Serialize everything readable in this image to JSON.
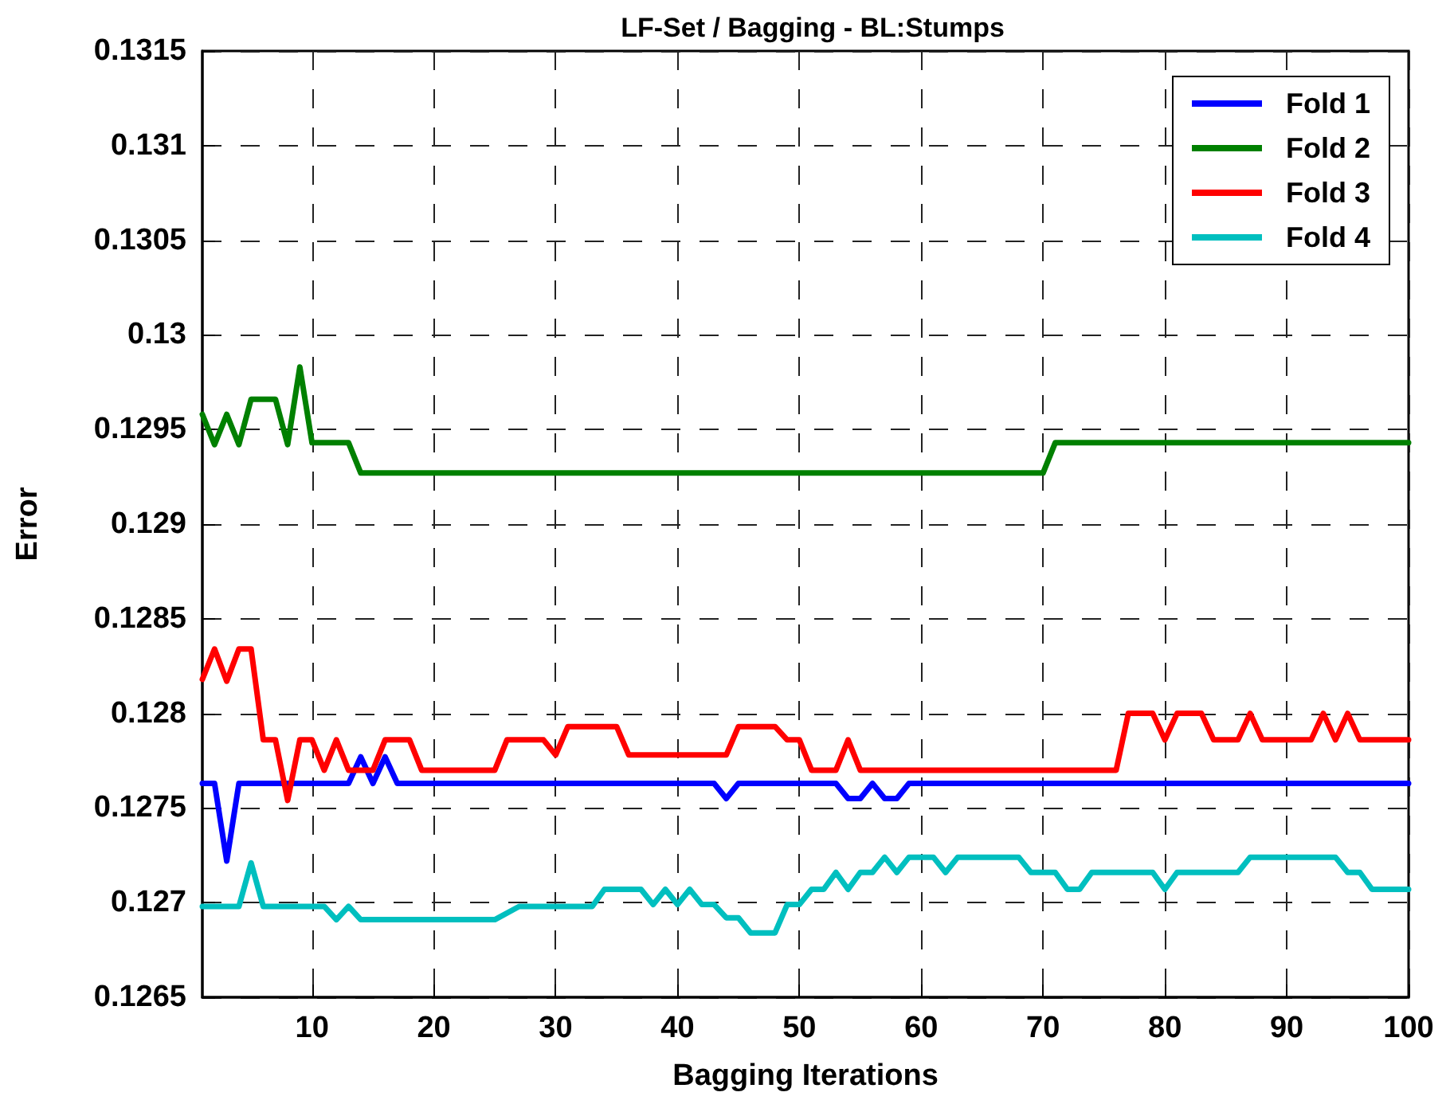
{
  "chart_data": {
    "type": "line",
    "title": "LF-Set / Bagging - BL:Stumps",
    "xlabel": "Bagging Iterations",
    "ylabel": "Error",
    "xlim": [
      1,
      100
    ],
    "xticks": [
      10,
      20,
      30,
      40,
      50,
      60,
      70,
      80,
      90,
      100
    ],
    "ylim": [
      0.1265,
      0.1315
    ],
    "yticks": [
      0.1265,
      0.127,
      0.1275,
      0.128,
      0.1285,
      0.129,
      0.1295,
      0.13,
      0.1305,
      0.131,
      0.1315
    ],
    "grid": true,
    "legend": "top right",
    "marker": "none",
    "line_style": "solid",
    "series": [
      {
        "name": "Fold 1",
        "color": "#0000ff",
        "x": [
          1,
          2,
          3,
          4,
          13,
          14,
          15,
          16,
          17,
          43,
          44,
          45,
          53,
          54,
          55,
          56,
          57,
          58,
          59,
          100
        ],
        "values": [
          0.12763,
          0.12763,
          0.12722,
          0.12763,
          0.12763,
          0.12777,
          0.12763,
          0.12777,
          0.12763,
          0.12763,
          0.12755,
          0.12763,
          0.12763,
          0.12755,
          0.12755,
          0.12763,
          0.12755,
          0.12755,
          0.12763,
          0.12763
        ]
      },
      {
        "name": "Fold 2",
        "color": "#008000",
        "x": [
          1,
          2,
          3,
          4,
          5,
          7,
          8,
          9,
          10,
          13,
          14,
          70,
          71,
          100
        ],
        "values": [
          0.12958,
          0.12942,
          0.12958,
          0.12942,
          0.12966,
          0.12966,
          0.12942,
          0.12983,
          0.12943,
          0.12943,
          0.12927,
          0.12927,
          0.12943,
          0.12943
        ]
      },
      {
        "name": "Fold 3",
        "color": "#ff0000",
        "x": [
          1,
          2,
          3,
          4,
          5,
          6,
          7,
          8,
          9,
          10,
          11,
          12,
          13,
          15,
          16,
          18,
          19,
          25,
          26,
          29,
          30,
          31,
          35,
          36,
          44,
          45,
          48,
          49,
          50,
          51,
          53,
          54,
          55,
          76,
          77,
          79,
          80,
          81,
          83,
          84,
          86,
          87,
          88,
          92,
          93,
          94,
          95,
          96,
          100
        ],
        "values": [
          0.12818,
          0.12834,
          0.12817,
          0.12834,
          0.12834,
          0.12786,
          0.12786,
          0.12754,
          0.12786,
          0.12786,
          0.1277,
          0.12786,
          0.1277,
          0.1277,
          0.12786,
          0.12786,
          0.1277,
          0.1277,
          0.12786,
          0.12786,
          0.12778,
          0.12793,
          0.12793,
          0.12778,
          0.12778,
          0.12793,
          0.12793,
          0.12786,
          0.12786,
          0.1277,
          0.1277,
          0.12786,
          0.1277,
          0.1277,
          0.128,
          0.128,
          0.12786,
          0.128,
          0.128,
          0.12786,
          0.12786,
          0.128,
          0.12786,
          0.12786,
          0.128,
          0.12786,
          0.128,
          0.12786,
          0.12786
        ]
      },
      {
        "name": "Fold 4",
        "color": "#00bfbf",
        "x": [
          1,
          4,
          5,
          6,
          10,
          11,
          12,
          13,
          14,
          25,
          27,
          33,
          34,
          37,
          38,
          39,
          40,
          41,
          42,
          43,
          44,
          45,
          46,
          47,
          48,
          49,
          50,
          51,
          52,
          53,
          54,
          55,
          56,
          57,
          58,
          59,
          61,
          62,
          63,
          68,
          69,
          71,
          72,
          73,
          74,
          79,
          80,
          81,
          86,
          87,
          94,
          95,
          96,
          97,
          100
        ],
        "values": [
          0.12698,
          0.12698,
          0.12721,
          0.12698,
          0.12698,
          0.12698,
          0.12691,
          0.12698,
          0.12691,
          0.12691,
          0.12698,
          0.12698,
          0.12707,
          0.12707,
          0.12699,
          0.12707,
          0.12699,
          0.12707,
          0.12699,
          0.12699,
          0.12692,
          0.12692,
          0.12684,
          0.12684,
          0.12684,
          0.12699,
          0.12699,
          0.12707,
          0.12707,
          0.12716,
          0.12707,
          0.12716,
          0.12716,
          0.12724,
          0.12716,
          0.12724,
          0.12724,
          0.12716,
          0.12724,
          0.12724,
          0.12716,
          0.12716,
          0.12707,
          0.12707,
          0.12716,
          0.12716,
          0.12707,
          0.12716,
          0.12716,
          0.12724,
          0.12724,
          0.12716,
          0.12716,
          0.12707,
          0.12707
        ]
      }
    ]
  }
}
